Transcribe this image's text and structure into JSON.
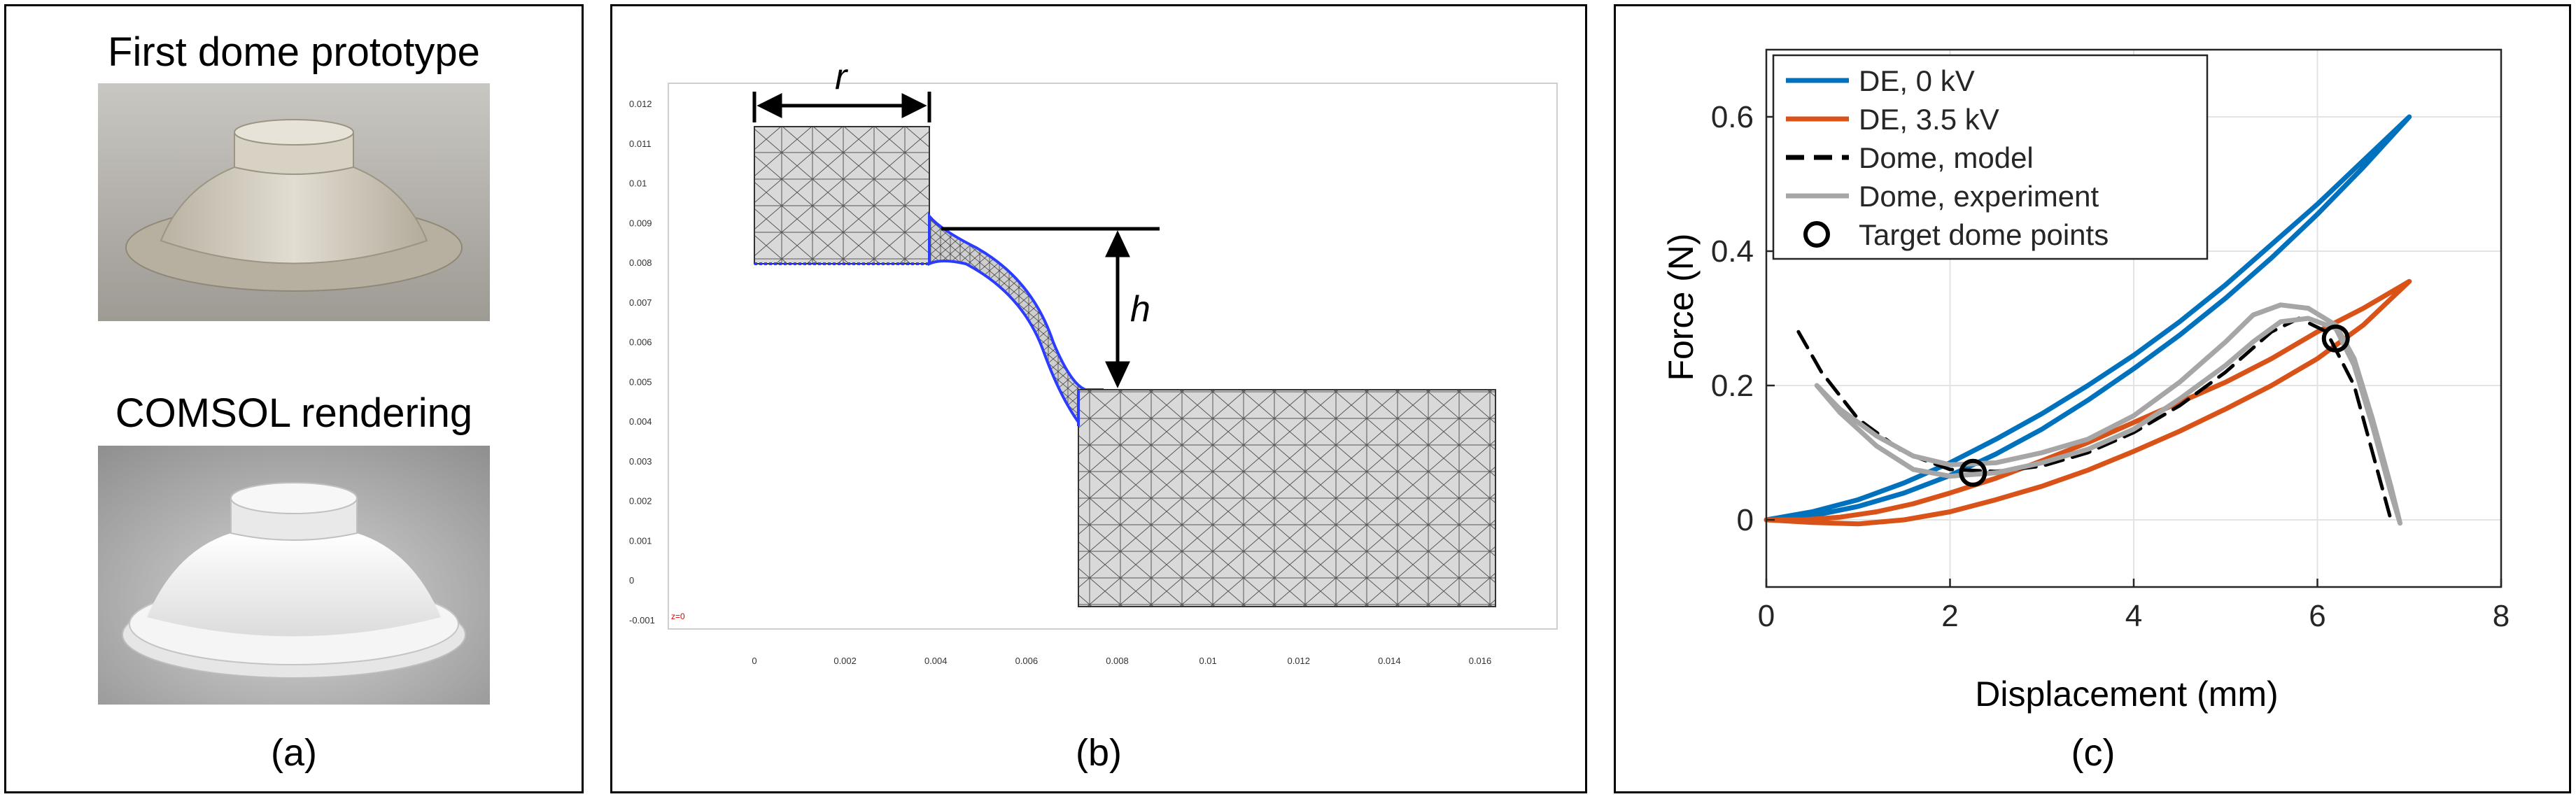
{
  "panel_a": {
    "prototype_title": "First dome prototype",
    "rendering_title": "COMSOL rendering",
    "caption": "(a)"
  },
  "panel_b": {
    "caption": "(b)",
    "label_r": "r",
    "label_h": "h",
    "origin_label": "z=0",
    "y_ticks": [
      "0.012",
      "0.011",
      "0.01",
      "0.009",
      "0.008",
      "0.007",
      "0.006",
      "0.005",
      "0.004",
      "0.003",
      "0.002",
      "0.001",
      "0",
      "-0.001"
    ],
    "x_ticks": [
      "0",
      "0.002",
      "0.004",
      "0.006",
      "0.008",
      "0.01",
      "0.012",
      "0.014",
      "0.016"
    ]
  },
  "panel_c": {
    "caption": "(c)"
  },
  "chart_data": {
    "type": "line",
    "title": "",
    "xlabel": "Displacement (mm)",
    "ylabel": "Force (N)",
    "xlim": [
      0,
      8
    ],
    "ylim": [
      -0.1,
      0.7
    ],
    "xticks": [
      "0",
      "2",
      "4",
      "6",
      "8"
    ],
    "yticks": [
      "0",
      "0.2",
      "0.4",
      "0.6"
    ],
    "grid": true,
    "legend_position": "top-left",
    "series": [
      {
        "name": "DE, 0 kV",
        "color": "#0072BD",
        "dash": "solid",
        "loop": true,
        "x": [
          0,
          0.5,
          1,
          1.5,
          2,
          2.5,
          3,
          3.5,
          4,
          4.5,
          5,
          5.5,
          6,
          6.5,
          7,
          6.5,
          6,
          5.5,
          5,
          4.5,
          4,
          3.5,
          3,
          2.5,
          2,
          1.5,
          1,
          0.5,
          0
        ],
        "y": [
          0,
          0.012,
          0.03,
          0.055,
          0.085,
          0.12,
          0.158,
          0.2,
          0.245,
          0.295,
          0.35,
          0.41,
          0.47,
          0.535,
          0.6,
          0.525,
          0.455,
          0.39,
          0.33,
          0.275,
          0.225,
          0.178,
          0.135,
          0.098,
          0.066,
          0.04,
          0.02,
          0.006,
          0
        ]
      },
      {
        "name": "DE, 3.5 kV",
        "color": "#D95319",
        "dash": "solid",
        "loop": true,
        "x": [
          0,
          0.4,
          0.8,
          1.2,
          1.6,
          2,
          2.5,
          3,
          3.5,
          4,
          4.5,
          5,
          5.5,
          6,
          6.5,
          7,
          6.5,
          6,
          5.5,
          5,
          4.5,
          4,
          3.5,
          3,
          2.5,
          2,
          1.5,
          1,
          0.5,
          0
        ],
        "y": [
          0,
          0,
          0.004,
          0.012,
          0.024,
          0.04,
          0.062,
          0.088,
          0.115,
          0.145,
          0.175,
          0.205,
          0.24,
          0.28,
          0.315,
          0.355,
          0.29,
          0.24,
          0.2,
          0.165,
          0.132,
          0.102,
          0.074,
          0.05,
          0.03,
          0.012,
          0,
          -0.006,
          -0.004,
          0
        ]
      },
      {
        "name": "Dome, model",
        "color": "#000000",
        "dash": "dashed",
        "loop": false,
        "x": [
          0.35,
          0.6,
          1,
          1.5,
          2,
          2.5,
          3,
          3.5,
          4,
          4.5,
          5,
          5.5,
          5.8,
          6.1,
          6.4,
          6.6,
          6.8
        ],
        "y": [
          0.28,
          0.22,
          0.15,
          0.1,
          0.075,
          0.072,
          0.08,
          0.1,
          0.13,
          0.17,
          0.22,
          0.28,
          0.3,
          0.28,
          0.2,
          0.1,
          0
        ]
      },
      {
        "name": "Dome, experiment",
        "color": "#A6A6A6",
        "dash": "solid",
        "loop": true,
        "x": [
          0.55,
          0.8,
          1.2,
          1.6,
          2,
          2.5,
          3,
          3.5,
          4,
          4.5,
          5,
          5.3,
          5.6,
          5.9,
          6.2,
          6.4,
          6.6,
          6.8,
          6.9,
          6.8,
          6.6,
          6.4,
          6.2,
          5.9,
          5.6,
          5.3,
          5,
          4.5,
          4,
          3.5,
          3,
          2.5,
          2,
          1.6,
          1.2,
          0.8,
          0.55
        ],
        "y": [
          0.2,
          0.16,
          0.11,
          0.075,
          0.065,
          0.07,
          0.085,
          0.105,
          0.135,
          0.18,
          0.23,
          0.265,
          0.295,
          0.3,
          0.285,
          0.23,
          0.14,
          0.04,
          -0.005,
          0.05,
          0.15,
          0.24,
          0.29,
          0.315,
          0.32,
          0.305,
          0.265,
          0.205,
          0.155,
          0.12,
          0.1,
          0.085,
          0.082,
          0.095,
          0.125,
          0.165,
          0.2
        ]
      }
    ],
    "target_points": {
      "name": "Target dome points",
      "x": [
        2.25,
        6.2
      ],
      "y": [
        0.07,
        0.27
      ]
    }
  }
}
